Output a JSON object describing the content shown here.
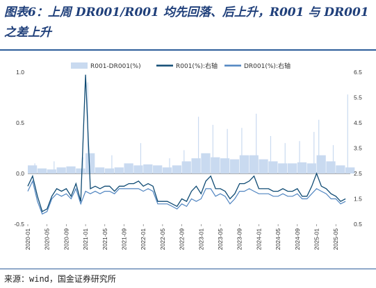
{
  "title": "图表6：上周 DR001/R001 均先回落、后上升，R001 与 DR001 之差上升",
  "source": "来源：wind，国金证券研究所",
  "chart_data": {
    "type": "line",
    "title": "",
    "x_ticks": [
      "2020-01",
      "2020-05",
      "2020-09",
      "2021-01",
      "2021-05",
      "2021-09",
      "2022-01",
      "2022-05",
      "2022-09",
      "2023-01",
      "2023-05",
      "2023-09",
      "2024-01",
      "2024-05",
      "2024-09",
      "2025-01",
      "2025-05"
    ],
    "x_range": [
      "2020-01-01",
      "2025-08-01"
    ],
    "left_axis": {
      "ticks": [
        "-0.5",
        "0.0",
        "0.5",
        "1.0"
      ],
      "ylim": [
        -0.5,
        1.0
      ]
    },
    "right_axis": {
      "ticks": [
        "0.5",
        "1.5",
        "2.5",
        "3.5",
        "4.5",
        "5.5",
        "6.5"
      ],
      "ylim": [
        0.5,
        6.5
      ]
    },
    "legend": {
      "position": "top",
      "entries": [
        "R001-DR001(%)",
        "R001(%):右轴",
        "DR001(%):右轴"
      ]
    },
    "colors": {
      "spread": "#c9daf0",
      "r001": "#0e4a73",
      "dr001": "#4f84c0"
    },
    "series": [
      {
        "name": "R001-DR001(%)",
        "axis": "left",
        "style": "bar",
        "x": [
          "2020-01",
          "2020-03",
          "2020-05",
          "2020-07",
          "2020-09",
          "2020-11",
          "2021-01",
          "2021-03",
          "2021-05",
          "2021-07",
          "2021-09",
          "2021-11",
          "2022-01",
          "2022-03",
          "2022-05",
          "2022-07",
          "2022-09",
          "2022-11",
          "2023-01",
          "2023-03",
          "2023-05",
          "2023-07",
          "2023-09",
          "2023-11",
          "2024-01",
          "2024-03",
          "2024-05",
          "2024-07",
          "2024-09",
          "2024-11",
          "2025-01",
          "2025-03",
          "2025-05",
          "2025-07"
        ],
        "values": [
          0.08,
          0.05,
          0.04,
          0.06,
          0.07,
          0.05,
          0.2,
          0.06,
          0.05,
          0.06,
          0.1,
          0.08,
          0.09,
          0.08,
          0.06,
          0.08,
          0.12,
          0.15,
          0.2,
          0.16,
          0.15,
          0.14,
          0.18,
          0.18,
          0.14,
          0.12,
          0.1,
          0.1,
          0.11,
          0.1,
          0.18,
          0.12,
          0.08,
          0.06
        ],
        "spikes": [
          {
            "x": "2020-02",
            "value": 0.1
          },
          {
            "x": "2020-06",
            "value": 0.12
          },
          {
            "x": "2020-12",
            "value": 0.16
          },
          {
            "x": "2021-01",
            "value": 0.9
          },
          {
            "x": "2021-06",
            "value": 0.18
          },
          {
            "x": "2021-12",
            "value": 0.3
          },
          {
            "x": "2022-06",
            "value": 0.15
          },
          {
            "x": "2022-09",
            "value": 0.23
          },
          {
            "x": "2022-12",
            "value": 0.56
          },
          {
            "x": "2023-03",
            "value": 0.48
          },
          {
            "x": "2023-06",
            "value": 0.44
          },
          {
            "x": "2023-09",
            "value": 0.45
          },
          {
            "x": "2023-12",
            "value": 0.59
          },
          {
            "x": "2024-03",
            "value": 0.37
          },
          {
            "x": "2024-06",
            "value": 0.3
          },
          {
            "x": "2024-09",
            "value": 0.32
          },
          {
            "x": "2024-12",
            "value": 0.41
          },
          {
            "x": "2025-01",
            "value": 0.53
          },
          {
            "x": "2025-04",
            "value": 0.28
          },
          {
            "x": "2025-07",
            "value": 0.78
          }
        ]
      },
      {
        "name": "R001(%):右轴",
        "axis": "right",
        "style": "line",
        "x": [
          "2020-01",
          "2020-02",
          "2020-03",
          "2020-04",
          "2020-05",
          "2020-06",
          "2020-07",
          "2020-08",
          "2020-09",
          "2020-10",
          "2020-11",
          "2020-12",
          "2021-01",
          "2021-02",
          "2021-03",
          "2021-04",
          "2021-05",
          "2021-06",
          "2021-07",
          "2021-08",
          "2021-09",
          "2021-10",
          "2021-11",
          "2021-12",
          "2022-01",
          "2022-02",
          "2022-03",
          "2022-04",
          "2022-05",
          "2022-06",
          "2022-07",
          "2022-08",
          "2022-09",
          "2022-10",
          "2022-11",
          "2022-12",
          "2023-01",
          "2023-02",
          "2023-03",
          "2023-04",
          "2023-05",
          "2023-06",
          "2023-07",
          "2023-08",
          "2023-09",
          "2023-10",
          "2023-11",
          "2023-12",
          "2024-01",
          "2024-02",
          "2024-03",
          "2024-04",
          "2024-05",
          "2024-06",
          "2024-07",
          "2024-08",
          "2024-09",
          "2024-10",
          "2024-11",
          "2024-12",
          "2025-01",
          "2025-02",
          "2025-03",
          "2025-04",
          "2025-05",
          "2025-06",
          "2025-07"
        ],
        "values": [
          2.0,
          2.4,
          1.6,
          1.0,
          1.1,
          1.6,
          1.9,
          1.8,
          1.9,
          1.6,
          2.1,
          1.4,
          6.4,
          1.9,
          2.0,
          1.9,
          2.0,
          2.0,
          1.8,
          2.0,
          2.0,
          2.1,
          2.1,
          2.2,
          2.0,
          2.1,
          2.0,
          1.4,
          1.4,
          1.4,
          1.3,
          1.2,
          1.5,
          1.4,
          1.8,
          2.0,
          1.7,
          2.2,
          2.4,
          1.9,
          1.9,
          1.8,
          1.5,
          1.7,
          2.1,
          2.1,
          2.2,
          2.4,
          1.9,
          1.9,
          1.9,
          1.8,
          1.8,
          1.9,
          1.8,
          1.8,
          1.9,
          1.6,
          1.6,
          2.0,
          2.5,
          2.0,
          1.9,
          1.7,
          1.6,
          1.4,
          1.5
        ]
      },
      {
        "name": "DR001(%):右轴",
        "axis": "right",
        "style": "line",
        "x": [
          "2020-01",
          "2020-02",
          "2020-03",
          "2020-04",
          "2020-05",
          "2020-06",
          "2020-07",
          "2020-08",
          "2020-09",
          "2020-10",
          "2020-11",
          "2020-12",
          "2021-01",
          "2021-02",
          "2021-03",
          "2021-04",
          "2021-05",
          "2021-06",
          "2021-07",
          "2021-08",
          "2021-09",
          "2021-10",
          "2021-11",
          "2021-12",
          "2022-01",
          "2022-02",
          "2022-03",
          "2022-04",
          "2022-05",
          "2022-06",
          "2022-07",
          "2022-08",
          "2022-09",
          "2022-10",
          "2022-11",
          "2022-12",
          "2023-01",
          "2023-02",
          "2023-03",
          "2023-04",
          "2023-05",
          "2023-06",
          "2023-07",
          "2023-08",
          "2023-09",
          "2023-10",
          "2023-11",
          "2023-12",
          "2024-01",
          "2024-02",
          "2024-03",
          "2024-04",
          "2024-05",
          "2024-06",
          "2024-07",
          "2024-08",
          "2024-09",
          "2024-10",
          "2024-11",
          "2024-12",
          "2025-01",
          "2025-02",
          "2025-03",
          "2025-04",
          "2025-05",
          "2025-06",
          "2025-07"
        ],
        "values": [
          1.8,
          2.2,
          1.4,
          0.9,
          1.0,
          1.5,
          1.7,
          1.6,
          1.7,
          1.5,
          1.9,
          1.3,
          1.8,
          1.7,
          1.8,
          1.7,
          1.8,
          1.8,
          1.7,
          1.9,
          1.9,
          1.9,
          1.9,
          1.9,
          1.8,
          1.9,
          1.8,
          1.3,
          1.3,
          1.3,
          1.2,
          1.1,
          1.3,
          1.2,
          1.5,
          1.4,
          1.5,
          1.9,
          1.9,
          1.6,
          1.7,
          1.6,
          1.3,
          1.5,
          1.8,
          1.8,
          1.9,
          1.8,
          1.7,
          1.7,
          1.7,
          1.6,
          1.6,
          1.7,
          1.6,
          1.6,
          1.7,
          1.5,
          1.5,
          1.7,
          1.9,
          1.8,
          1.7,
          1.5,
          1.5,
          1.3,
          1.4
        ]
      }
    ]
  }
}
